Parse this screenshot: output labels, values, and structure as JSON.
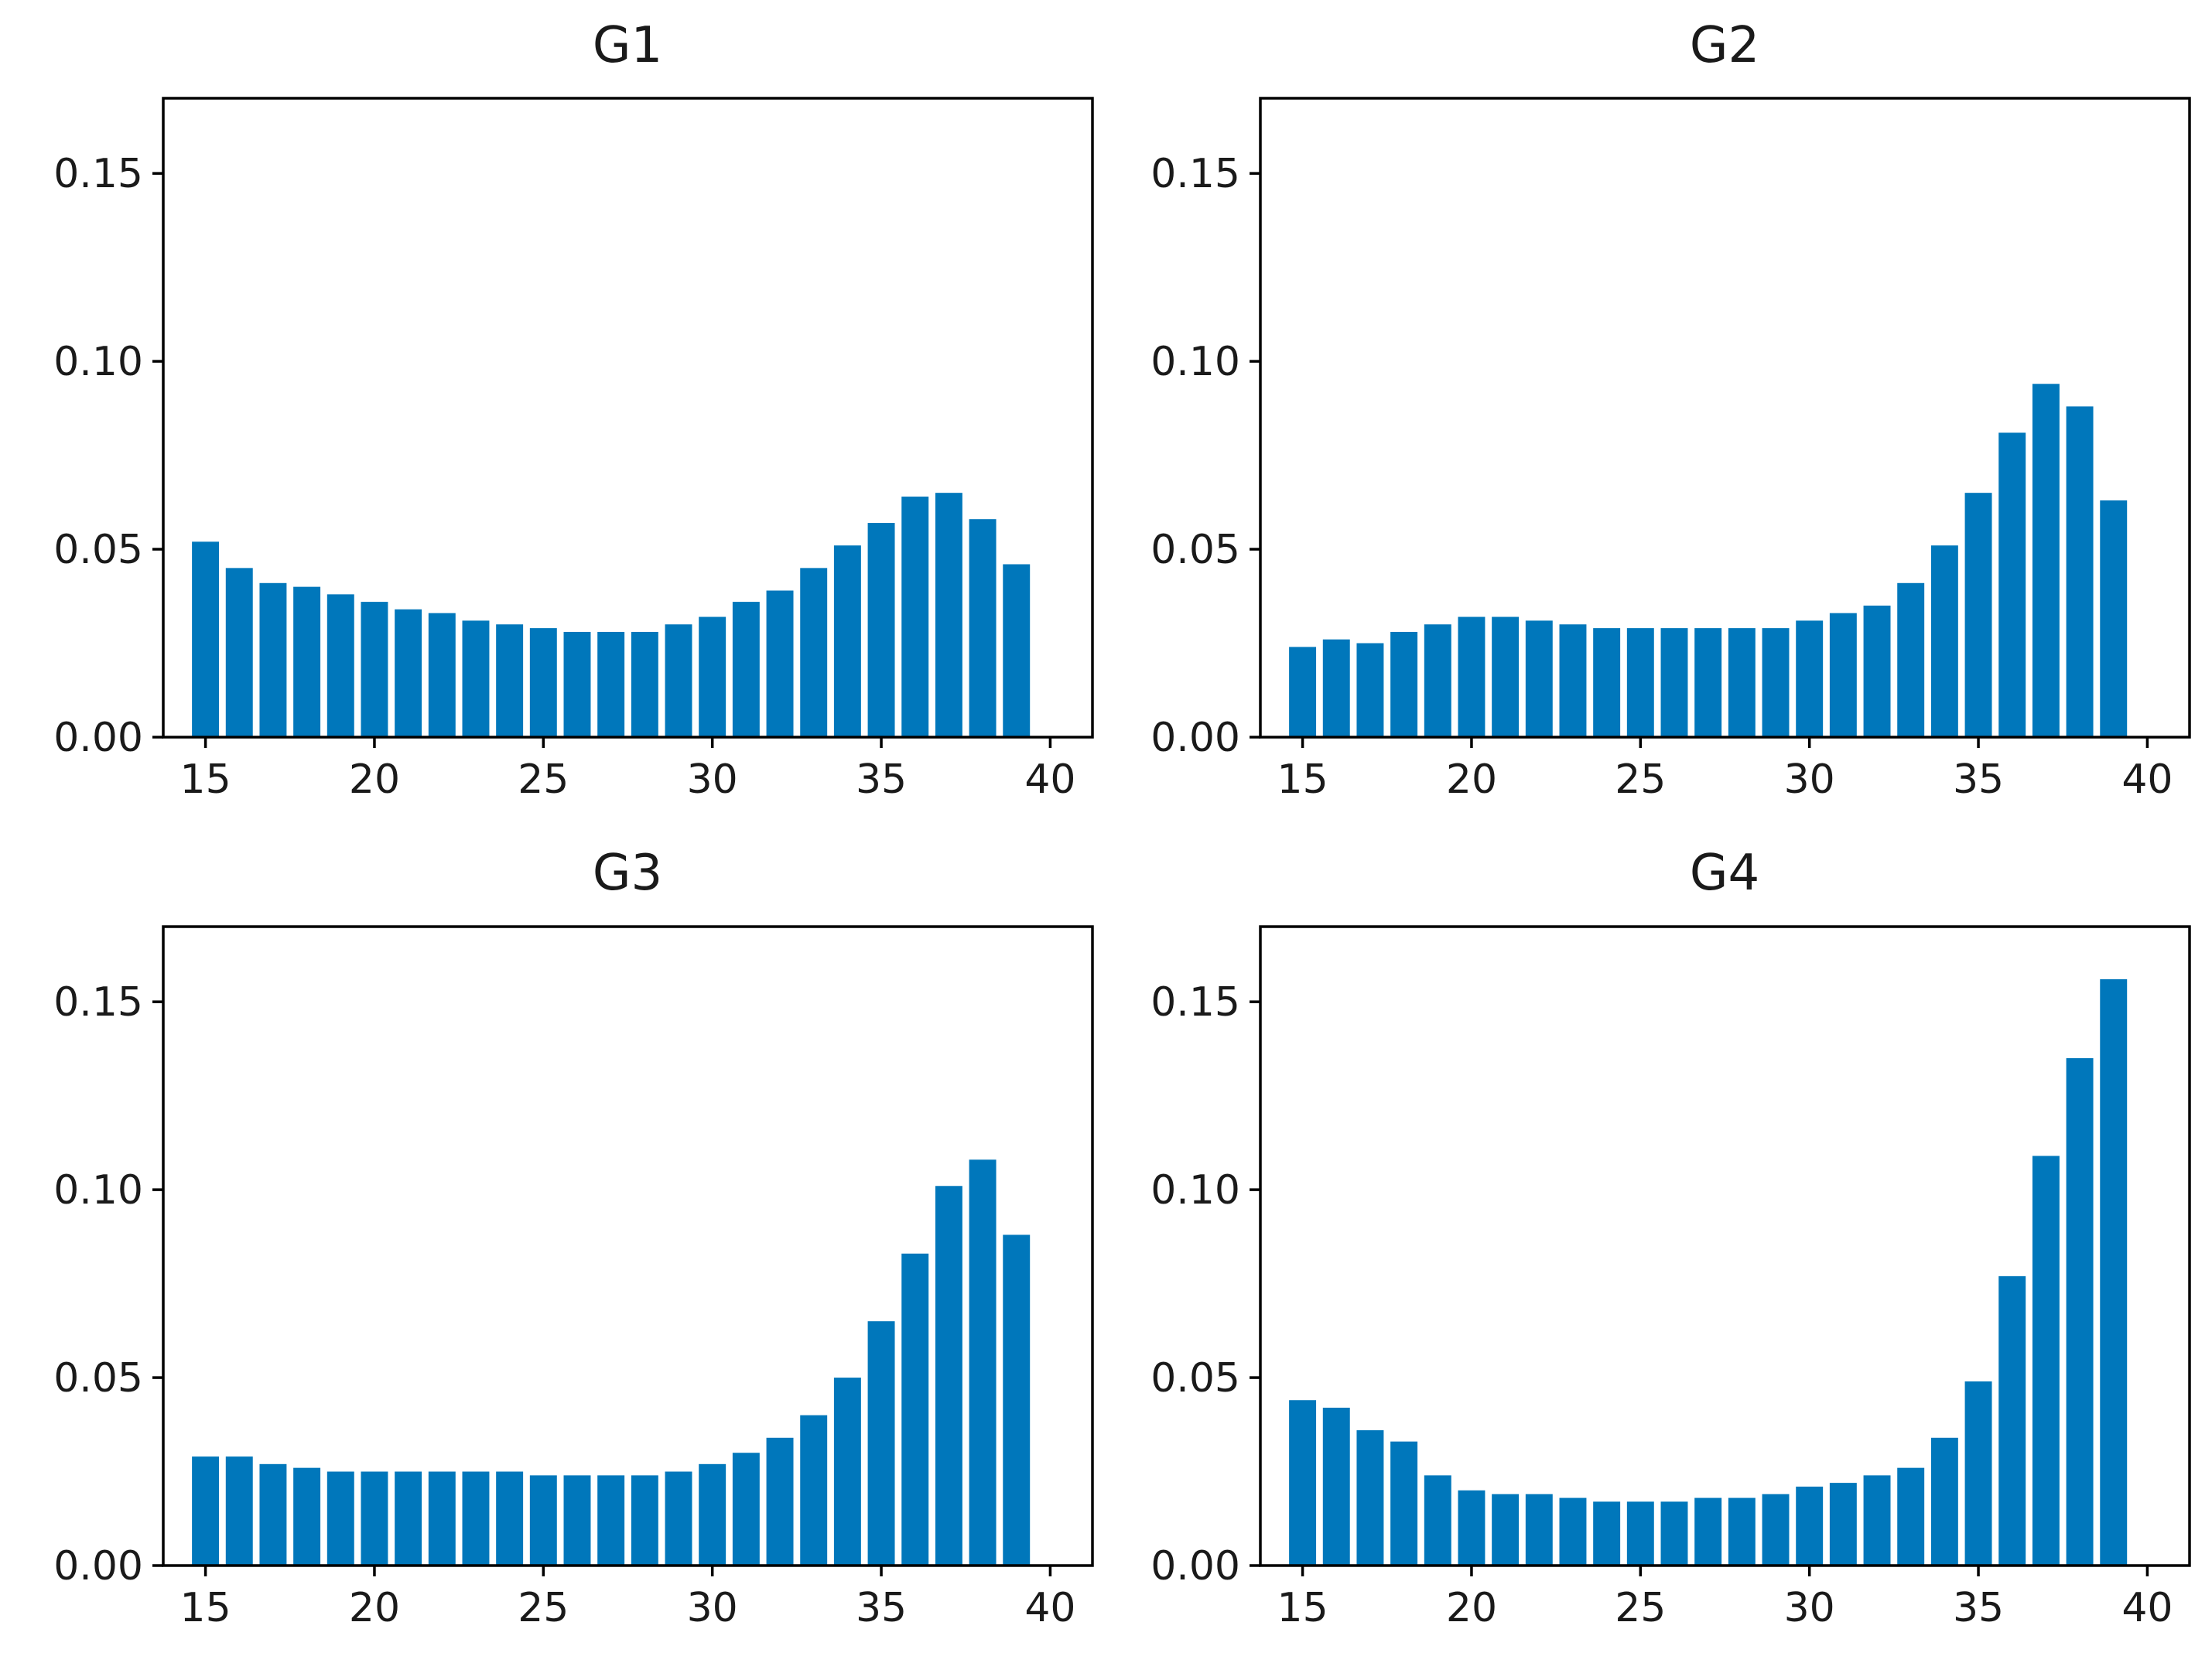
{
  "chart_data": [
    {
      "type": "bar",
      "title": "G1",
      "xlabel": "",
      "ylabel": "",
      "x": [
        15,
        16,
        17,
        18,
        19,
        20,
        21,
        22,
        23,
        24,
        25,
        26,
        27,
        28,
        29,
        30,
        31,
        32,
        33,
        34,
        35,
        36,
        37,
        38,
        39
      ],
      "values": [
        0.052,
        0.045,
        0.041,
        0.04,
        0.038,
        0.036,
        0.034,
        0.033,
        0.031,
        0.03,
        0.029,
        0.028,
        0.028,
        0.028,
        0.03,
        0.032,
        0.036,
        0.039,
        0.045,
        0.051,
        0.057,
        0.064,
        0.065,
        0.058,
        0.046
      ],
      "xlim": [
        13.75,
        41.25
      ],
      "ylim": [
        0,
        0.17
      ],
      "xticks": [
        "15",
        "20",
        "25",
        "30",
        "35",
        "40"
      ],
      "yticks": [
        "0.00",
        "0.05",
        "0.10",
        "0.15"
      ],
      "bar_color": "#0077bb"
    },
    {
      "type": "bar",
      "title": "G2",
      "xlabel": "",
      "ylabel": "",
      "x": [
        15,
        16,
        17,
        18,
        19,
        20,
        21,
        22,
        23,
        24,
        25,
        26,
        27,
        28,
        29,
        30,
        31,
        32,
        33,
        34,
        35,
        36,
        37,
        38,
        39
      ],
      "values": [
        0.024,
        0.026,
        0.025,
        0.028,
        0.03,
        0.032,
        0.032,
        0.031,
        0.03,
        0.029,
        0.029,
        0.029,
        0.029,
        0.029,
        0.029,
        0.031,
        0.033,
        0.035,
        0.041,
        0.051,
        0.065,
        0.081,
        0.094,
        0.088,
        0.063
      ],
      "xlim": [
        13.75,
        41.25
      ],
      "ylim": [
        0,
        0.17
      ],
      "xticks": [
        "15",
        "20",
        "25",
        "30",
        "35",
        "40"
      ],
      "yticks": [
        "0.00",
        "0.05",
        "0.10",
        "0.15"
      ],
      "bar_color": "#0077bb"
    },
    {
      "type": "bar",
      "title": "G3",
      "xlabel": "",
      "ylabel": "",
      "x": [
        15,
        16,
        17,
        18,
        19,
        20,
        21,
        22,
        23,
        24,
        25,
        26,
        27,
        28,
        29,
        30,
        31,
        32,
        33,
        34,
        35,
        36,
        37,
        38,
        39
      ],
      "values": [
        0.029,
        0.029,
        0.027,
        0.026,
        0.025,
        0.025,
        0.025,
        0.025,
        0.025,
        0.025,
        0.024,
        0.024,
        0.024,
        0.024,
        0.025,
        0.027,
        0.03,
        0.034,
        0.04,
        0.05,
        0.065,
        0.083,
        0.101,
        0.108,
        0.088
      ],
      "xlim": [
        13.75,
        41.25
      ],
      "ylim": [
        0,
        0.17
      ],
      "xticks": [
        "15",
        "20",
        "25",
        "30",
        "35",
        "40"
      ],
      "yticks": [
        "0.00",
        "0.05",
        "0.10",
        "0.15"
      ],
      "bar_color": "#0077bb"
    },
    {
      "type": "bar",
      "title": "G4",
      "xlabel": "",
      "ylabel": "",
      "x": [
        15,
        16,
        17,
        18,
        19,
        20,
        21,
        22,
        23,
        24,
        25,
        26,
        27,
        28,
        29,
        30,
        31,
        32,
        33,
        34,
        35,
        36,
        37,
        38,
        39
      ],
      "values": [
        0.044,
        0.042,
        0.036,
        0.033,
        0.024,
        0.02,
        0.019,
        0.019,
        0.018,
        0.017,
        0.017,
        0.017,
        0.018,
        0.018,
        0.019,
        0.021,
        0.022,
        0.024,
        0.026,
        0.034,
        0.049,
        0.077,
        0.109,
        0.135,
        0.156
      ],
      "xlim": [
        13.75,
        41.25
      ],
      "ylim": [
        0,
        0.17
      ],
      "xticks": [
        "15",
        "20",
        "25",
        "30",
        "35",
        "40"
      ],
      "yticks": [
        "0.00",
        "0.05",
        "0.10",
        "0.15"
      ],
      "bar_color": "#0077bb"
    }
  ]
}
